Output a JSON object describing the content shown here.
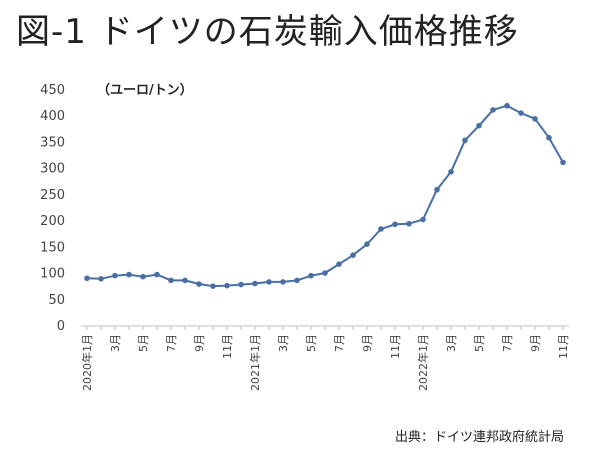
{
  "title": "図-1 ドイツの石炭輸入価格推移",
  "unit_label": "（ユーロ/トン）",
  "source": "出典：ドイツ連邦政府統計局",
  "chart_data": {
    "type": "line",
    "title": "図-1 ドイツの石炭輸入価格推移",
    "ylabel": "（ユーロ/トン）",
    "xlabel": "",
    "ylim": [
      0,
      450
    ],
    "yticks": [
      0,
      50,
      100,
      150,
      200,
      250,
      300,
      350,
      400,
      450
    ],
    "grid": false,
    "legend": "none",
    "line_color": "#4a6fa5",
    "x": [
      "2020年1月",
      "2月",
      "3月",
      "4月",
      "5月",
      "6月",
      "7月",
      "8月",
      "9月",
      "10月",
      "11月",
      "12月",
      "2021年1月",
      "2月",
      "3月",
      "4月",
      "5月",
      "6月",
      "7月",
      "8月",
      "9月",
      "10月",
      "11月",
      "12月",
      "2022年1月",
      "2月",
      "3月",
      "4月",
      "5月",
      "6月",
      "7月",
      "8月",
      "9月",
      "10月",
      "11月"
    ],
    "tick_labels": [
      "2020年1月",
      "",
      "3月",
      "",
      "5月",
      "",
      "7月",
      "",
      "9月",
      "",
      "11月",
      "",
      "2021年1月",
      "",
      "3月",
      "",
      "5月",
      "",
      "7月",
      "",
      "9月",
      "",
      "11月",
      "",
      "2022年1月",
      "",
      "3月",
      "",
      "5月",
      "",
      "7月",
      "",
      "9月",
      "",
      "11月"
    ],
    "series": [
      {
        "values": [
          91,
          90,
          96,
          98,
          94,
          98,
          87,
          87,
          80,
          76,
          77,
          79,
          81,
          84,
          84,
          87,
          96,
          101,
          118,
          135,
          156,
          185,
          194,
          195,
          203,
          260,
          294,
          354,
          382,
          412,
          420,
          406,
          395,
          359,
          312
        ]
      }
    ]
  }
}
